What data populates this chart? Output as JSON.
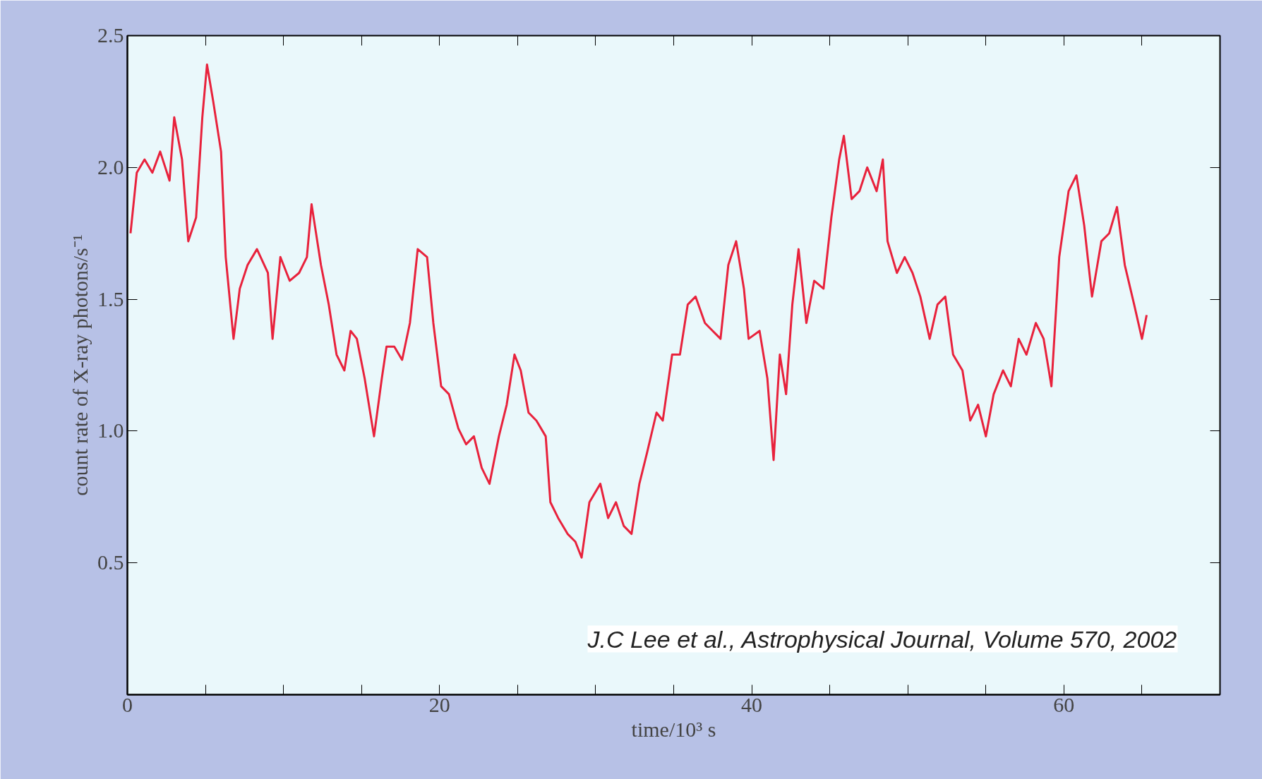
{
  "chart_data": {
    "type": "line",
    "xlabel": "time/10³ s",
    "ylabel": "count rate of X-ray photons/s⁻¹",
    "annotations": [
      "J.C Lee et al., Astrophysical Journal, Volume 570, 2002"
    ],
    "xlim": [
      0,
      70
    ],
    "ylim": [
      0,
      2.5
    ],
    "xticks": [
      0,
      {
        "value": 5,
        "label": null
      },
      {
        "value": 10,
        "label": null
      },
      {
        "value": 15,
        "label": null
      },
      20,
      {
        "value": 25,
        "label": null
      },
      {
        "value": 30,
        "label": null
      },
      {
        "value": 35,
        "label": null
      },
      40,
      {
        "value": 45,
        "label": null
      },
      {
        "value": 50,
        "label": null
      },
      {
        "value": 55,
        "label": null
      },
      60,
      {
        "value": 65,
        "label": null
      },
      {
        "value": 70,
        "label": null
      }
    ],
    "yticks": [
      {
        "value": 0,
        "label": null
      },
      0.5,
      {
        "value": 1,
        "label": "1.0"
      },
      1.5,
      {
        "value": 2,
        "label": "2.0"
      },
      2.5
    ],
    "grid": false,
    "marker": "none",
    "line_style": "solid",
    "series": [
      {
        "color": "#e8223c",
        "x": [
          0.2,
          0.6,
          1.1,
          1.6,
          2.1,
          2.7,
          3.0,
          3.5,
          3.9,
          4.4,
          4.8,
          5.1,
          5.5,
          6.0,
          6.3,
          6.8,
          7.2,
          7.7,
          8.3,
          9.0,
          9.3,
          9.8,
          10.4,
          11.0,
          11.5,
          11.8,
          12.4,
          12.9,
          13.4,
          13.9,
          14.3,
          14.7,
          15.2,
          15.8,
          16.3,
          16.6,
          17.1,
          17.6,
          18.1,
          18.6,
          19.2,
          19.6,
          20.1,
          20.6,
          21.2,
          21.7,
          22.2,
          22.7,
          23.2,
          23.8,
          24.3,
          24.8,
          25.2,
          25.7,
          26.2,
          26.8,
          27.1,
          27.6,
          28.2,
          28.7,
          29.1,
          29.6,
          30.3,
          30.8,
          31.3,
          31.8,
          32.3,
          32.8,
          33.3,
          33.9,
          34.3,
          34.9,
          35.4,
          35.9,
          36.4,
          37.0,
          37.5,
          38.0,
          38.5,
          39.0,
          39.5,
          39.8,
          40.5,
          41.0,
          41.4,
          41.8,
          42.2,
          42.6,
          43.0,
          43.5,
          44.0,
          44.6,
          45.1,
          45.6,
          45.9,
          46.4,
          46.9,
          47.4,
          48.0,
          48.4,
          48.7,
          49.3,
          49.8,
          50.3,
          50.8,
          51.4,
          51.9,
          52.4,
          52.9,
          53.5,
          54.0,
          54.5,
          55.0,
          55.5,
          56.1,
          56.6,
          57.1,
          57.6,
          58.2,
          58.7,
          59.2,
          59.7,
          60.3,
          60.8,
          61.3,
          61.8,
          62.4,
          62.9,
          63.4,
          63.9,
          64.5,
          65.0,
          65.3
        ],
        "values": [
          1.75,
          1.98,
          2.03,
          1.98,
          2.06,
          1.95,
          2.19,
          2.03,
          1.72,
          1.81,
          2.19,
          2.39,
          2.25,
          2.06,
          1.66,
          1.35,
          1.54,
          1.63,
          1.69,
          1.6,
          1.35,
          1.66,
          1.57,
          1.6,
          1.66,
          1.86,
          1.63,
          1.48,
          1.29,
          1.23,
          1.38,
          1.35,
          1.2,
          0.98,
          1.2,
          1.32,
          1.32,
          1.27,
          1.41,
          1.69,
          1.66,
          1.41,
          1.17,
          1.14,
          1.01,
          0.95,
          0.98,
          0.86,
          0.8,
          0.98,
          1.1,
          1.29,
          1.23,
          1.07,
          1.04,
          0.98,
          0.73,
          0.67,
          0.61,
          0.58,
          0.52,
          0.73,
          0.8,
          0.67,
          0.73,
          0.64,
          0.61,
          0.8,
          0.92,
          1.07,
          1.04,
          1.29,
          1.29,
          1.48,
          1.51,
          1.41,
          1.38,
          1.35,
          1.63,
          1.72,
          1.54,
          1.35,
          1.38,
          1.2,
          0.89,
          1.29,
          1.14,
          1.48,
          1.69,
          1.41,
          1.57,
          1.54,
          1.81,
          2.03,
          2.12,
          1.88,
          1.91,
          2.0,
          1.91,
          2.03,
          1.72,
          1.6,
          1.66,
          1.6,
          1.51,
          1.35,
          1.48,
          1.51,
          1.29,
          1.23,
          1.04,
          1.1,
          0.98,
          1.14,
          1.23,
          1.17,
          1.35,
          1.29,
          1.41,
          1.35,
          1.17,
          1.66,
          1.91,
          1.97,
          1.78,
          1.51,
          1.72,
          1.75,
          1.85,
          1.63,
          1.48,
          1.35,
          1.44
        ]
      }
    ]
  }
}
